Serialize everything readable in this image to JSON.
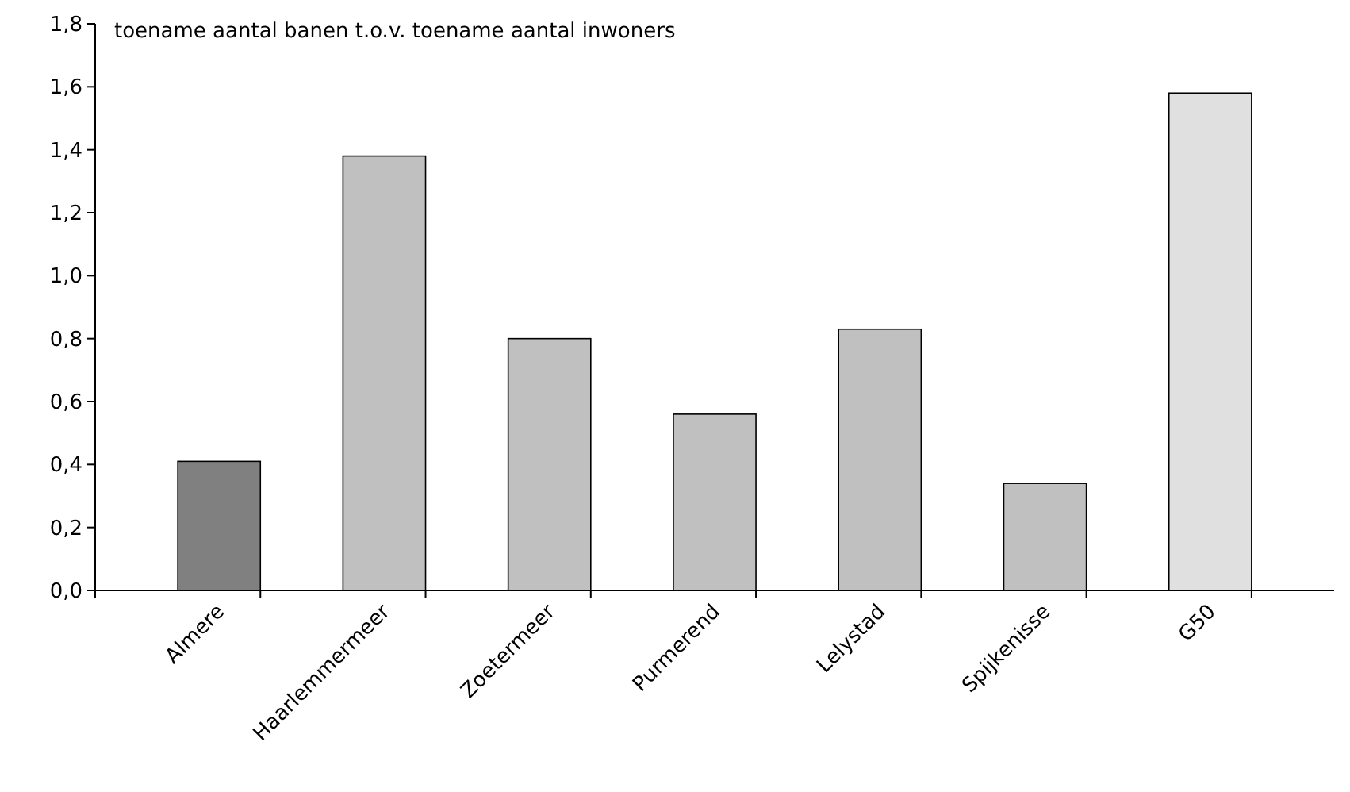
{
  "chart_data": {
    "type": "bar",
    "title": "toename aantal banen t.o.v. toename aantal inwoners",
    "categories": [
      "Almere",
      "Haarlemmermeer",
      "Zoetermeer",
      "Purmerend",
      "Lelystad",
      "Spijkenisse",
      "G50"
    ],
    "values": [
      0.41,
      1.38,
      0.8,
      0.56,
      0.83,
      0.34,
      1.58
    ],
    "colors": [
      "#808080",
      "#c0c0c0",
      "#c0c0c0",
      "#c0c0c0",
      "#c0c0c0",
      "#c0c0c0",
      "#e0e0e0"
    ],
    "ylim": [
      0,
      1.8
    ],
    "yticks": [
      {
        "value": 0,
        "label": "0,0"
      },
      {
        "value": 0.2,
        "label": "0,2"
      },
      {
        "value": 0.4,
        "label": "0,4"
      },
      {
        "value": 0.6,
        "label": "0,6"
      },
      {
        "value": 0.8,
        "label": "0,8"
      },
      {
        "value": 1,
        "label": "1,0"
      },
      {
        "value": 1.2,
        "label": "1,2"
      },
      {
        "value": 1.4,
        "label": "1,4"
      },
      {
        "value": 1.6,
        "label": "1,6"
      },
      {
        "value": 1.8,
        "label": "1,8"
      }
    ],
    "grid": false
  }
}
